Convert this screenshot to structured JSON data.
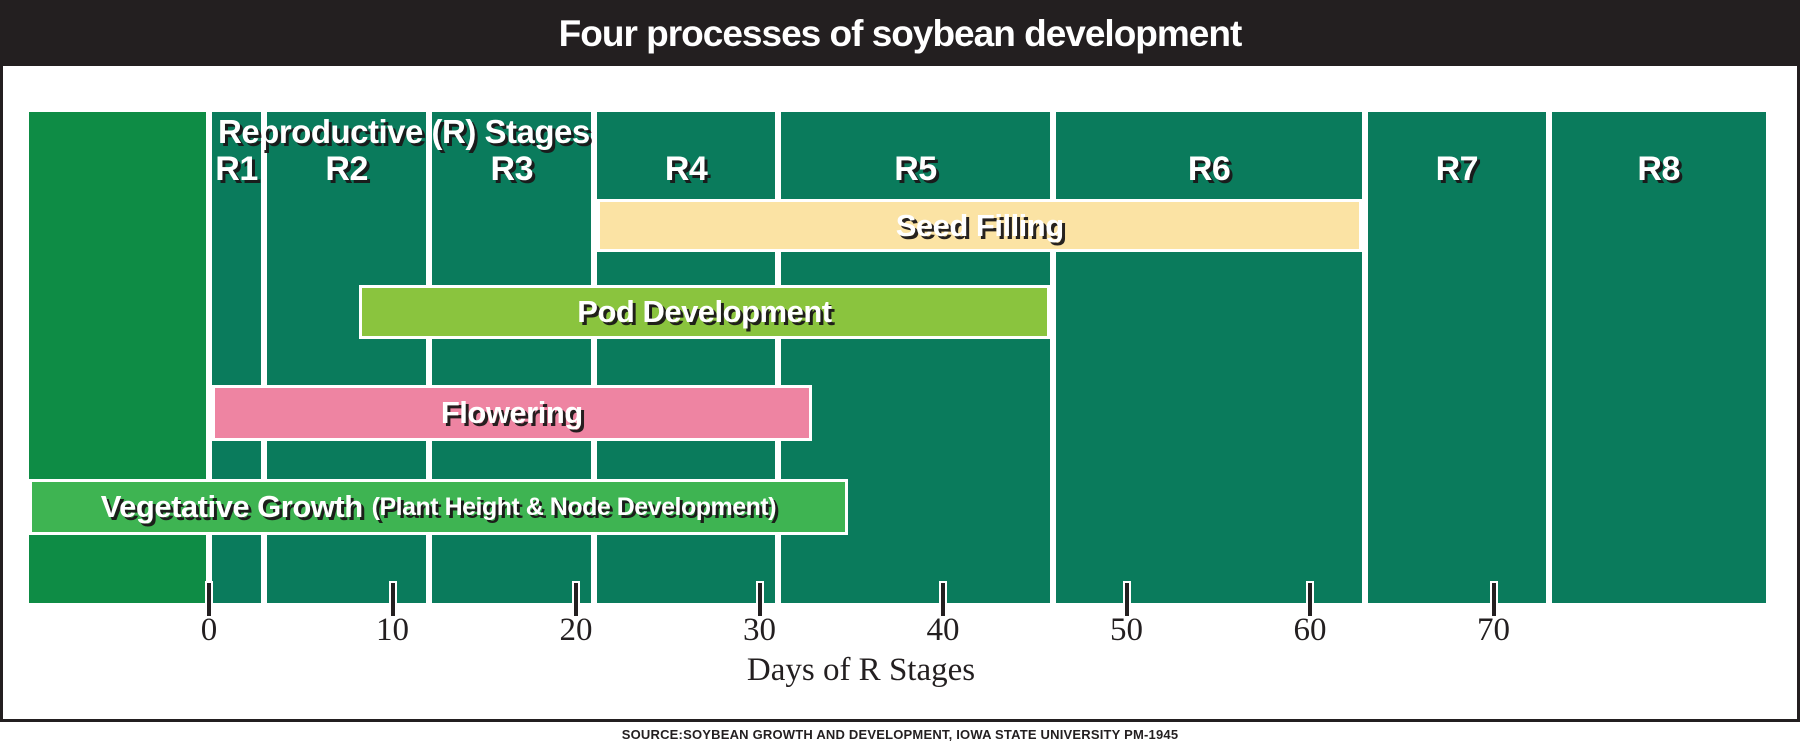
{
  "header": {
    "title": "Four processes of soybean development"
  },
  "footer": {
    "source": "SOURCE:SOYBEAN GROWTH AND DEVELOPMENT, IOWA STATE UNIVERSITY PM-1945"
  },
  "colors": {
    "header_bg": "#231f20",
    "border": "#231f20",
    "panel_default": "#0a7b5c",
    "panel_pre_reproductive": "#0e8c45",
    "label_text": "#ffffff",
    "axis_text": "#231f20"
  },
  "chart_data": {
    "type": "gantt-timeline",
    "title": "Four processes of soybean development",
    "stages_heading": "Reproductive (R) Stages",
    "xlabel": "Days of R Stages",
    "x_ticks": [
      0,
      10,
      20,
      30,
      40,
      50,
      60,
      70
    ],
    "x_range_days": [
      -10,
      85
    ],
    "grid": false,
    "stages": [
      {
        "label": "",
        "start_day": -10,
        "end_day": 0,
        "kind": "pre-reproductive",
        "color": "#0e8c45"
      },
      {
        "label": "R1",
        "start_day": 0,
        "end_day": 3,
        "color": "#0a7b5c"
      },
      {
        "label": "R2",
        "start_day": 3,
        "end_day": 12,
        "color": "#0a7b5c"
      },
      {
        "label": "R3",
        "start_day": 12,
        "end_day": 21,
        "color": "#0a7b5c"
      },
      {
        "label": "R4",
        "start_day": 21,
        "end_day": 31,
        "color": "#0a7b5c"
      },
      {
        "label": "R5",
        "start_day": 31,
        "end_day": 46,
        "color": "#0a7b5c"
      },
      {
        "label": "R6",
        "start_day": 46,
        "end_day": 63,
        "color": "#0a7b5c"
      },
      {
        "label": "R7",
        "start_day": 63,
        "end_day": 73,
        "color": "#0a7b5c"
      },
      {
        "label": "R8",
        "start_day": 73,
        "end_day": 85,
        "color": "#0a7b5c"
      }
    ],
    "processes": [
      {
        "name": "seed-filling",
        "label": "Seed Filling",
        "sublabel": "",
        "start_day": 21,
        "end_day": 63,
        "color": "#fbe3a4"
      },
      {
        "name": "pod-development",
        "label": "Pod Development",
        "sublabel": "",
        "start_day": 8,
        "end_day": 46,
        "color": "#8ac43e"
      },
      {
        "name": "flowering",
        "label": "Flowering",
        "sublabel": "",
        "start_day": 0,
        "end_day": 33,
        "color": "#ee84a2"
      },
      {
        "name": "vegetative-growth",
        "label": "Vegetative Growth",
        "sublabel": "(Plant Height & Node Development)",
        "start_day": -10,
        "end_day": 35,
        "color": "#3eb452"
      }
    ]
  }
}
